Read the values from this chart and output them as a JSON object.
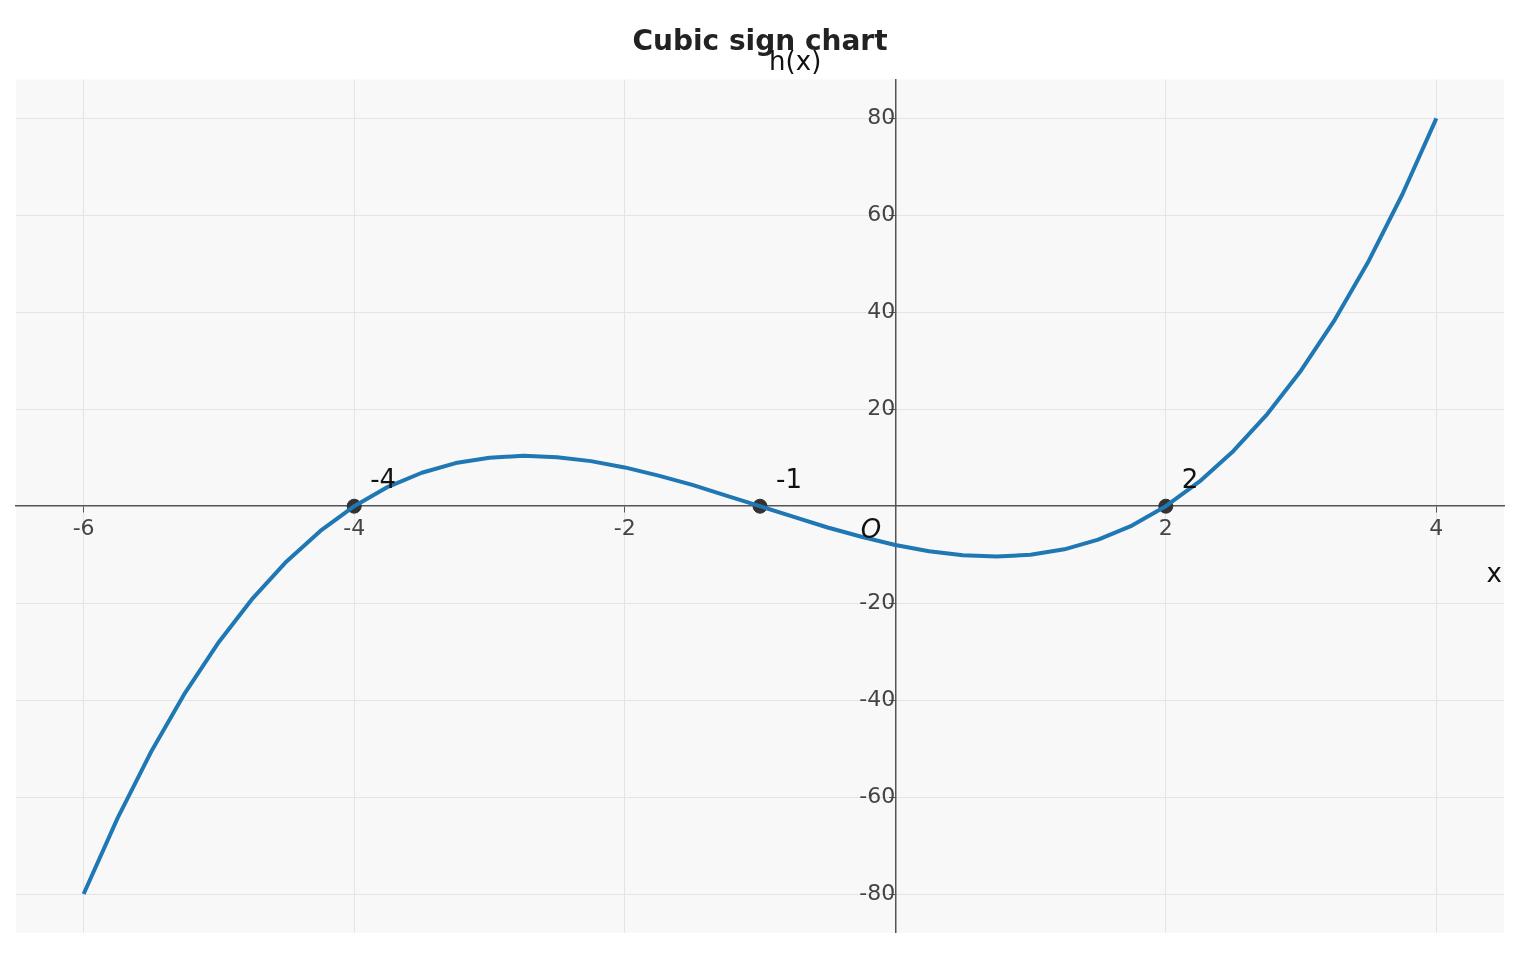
{
  "chart_data": {
    "type": "line",
    "title": "Cubic sign chart",
    "xlabel": "x",
    "ylabel": "h(x)",
    "xlim": [
      -6.5,
      4.5
    ],
    "ylim": [
      -88,
      88
    ],
    "xticks": [
      -6,
      -4,
      -2,
      2,
      4
    ],
    "yticks": [
      -80,
      -60,
      -40,
      -20,
      20,
      40,
      60,
      80
    ],
    "grid": true,
    "legend": false,
    "series": [
      {
        "color": "#1f77b4",
        "marker": "none",
        "line_style": "solid",
        "x": [
          -6,
          -5.75,
          -5.5,
          -5.25,
          -5,
          -4.75,
          -4.5,
          -4.25,
          -4,
          -3.75,
          -3.5,
          -3.25,
          -3,
          -2.75,
          -2.5,
          -2.25,
          -2,
          -1.75,
          -1.5,
          -1.25,
          -1,
          -0.75,
          -0.5,
          -0.25,
          0,
          0.25,
          0.5,
          0.75,
          1,
          1.25,
          1.5,
          1.75,
          2,
          2.25,
          2.5,
          2.75,
          3,
          3.25,
          3.5,
          3.75,
          4
        ],
        "values": [
          -80,
          -64.4,
          -50.6,
          -38.5,
          -28,
          -19,
          -11.4,
          -5.1,
          0,
          4,
          6.9,
          8.9,
          10,
          10.4,
          10.1,
          9.3,
          8,
          6.3,
          4.4,
          2.2,
          0,
          -2.2,
          -4.4,
          -6.3,
          -8,
          -9.3,
          -10.1,
          -10.4,
          -10,
          -8.9,
          -6.9,
          -4,
          0,
          5.1,
          11.4,
          19,
          28,
          38.5,
          50.6,
          64.4,
          80
        ]
      },
      {
        "type": "scatter",
        "color": "#333333",
        "marker": "circle",
        "x": [
          -4,
          -1,
          2
        ],
        "values": [
          0,
          0,
          0
        ]
      }
    ],
    "annotations": [
      {
        "text": "-4",
        "x": -4,
        "y": 0
      },
      {
        "text": "-1",
        "x": -1,
        "y": 0
      },
      {
        "text": "2",
        "x": 2,
        "y": 0
      },
      "O"
    ]
  }
}
